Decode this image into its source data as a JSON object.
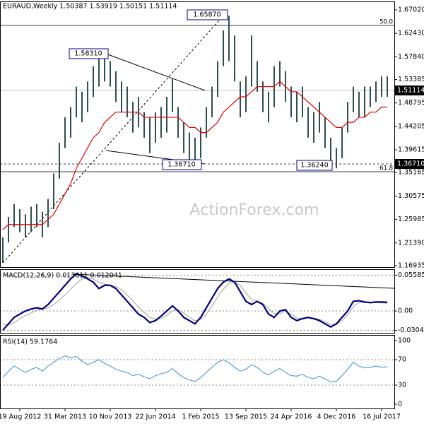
{
  "chart_data": [
    {
      "type": "ohlc",
      "title": "EURAUD,Weekly  1.50387 1.53919 1.50151 1.51114",
      "categories": [
        null,
        null,
        null,
        "19 Aug 2012",
        null,
        null,
        null,
        null,
        null,
        null,
        null,
        "31 Mar 2013",
        null,
        null,
        null,
        null,
        null,
        null,
        null,
        "10 Nov 2013",
        null,
        null,
        null,
        null,
        null,
        null,
        null,
        "22 Jun 2014",
        null,
        null,
        null,
        null,
        null,
        null,
        null,
        "1 Feb 2015",
        null,
        null,
        null,
        null,
        null,
        null,
        null,
        "13 Sep 2015",
        null,
        null,
        null,
        null,
        null,
        null,
        null,
        "24 Apr 2016",
        null,
        null,
        null,
        null,
        null,
        null,
        null,
        "4 Dec 2016",
        null,
        null,
        null,
        null,
        null,
        null,
        null,
        "16 Jul 2017",
        null
      ],
      "high": [
        1.225,
        1.265,
        1.29,
        1.28,
        1.27,
        1.285,
        1.29,
        1.275,
        1.3,
        1.35,
        1.41,
        1.46,
        1.48,
        1.52,
        1.51,
        1.53,
        1.56,
        1.585,
        1.58,
        1.57,
        1.55,
        1.53,
        1.52,
        1.49,
        1.5,
        1.47,
        1.46,
        1.47,
        1.48,
        1.5,
        1.535,
        1.48,
        1.45,
        1.43,
        1.42,
        1.44,
        1.48,
        1.52,
        1.57,
        1.63,
        1.6587,
        1.62,
        1.53,
        1.54,
        1.62,
        1.57,
        1.53,
        1.51,
        1.56,
        1.57,
        1.55,
        1.52,
        1.51,
        1.52,
        1.48,
        1.47,
        1.49,
        1.46,
        1.42,
        1.4,
        1.44,
        1.49,
        1.52,
        1.51,
        1.52,
        1.52,
        1.53,
        1.54,
        1.54
      ],
      "low": [
        1.175,
        1.215,
        1.245,
        1.235,
        1.225,
        1.235,
        1.245,
        1.225,
        1.245,
        1.28,
        1.34,
        1.4,
        1.42,
        1.46,
        1.45,
        1.47,
        1.5,
        1.52,
        1.53,
        1.52,
        1.49,
        1.47,
        1.46,
        1.43,
        1.44,
        1.42,
        1.39,
        1.41,
        1.42,
        1.43,
        1.47,
        1.42,
        1.39,
        1.3671,
        1.37,
        1.38,
        1.42,
        1.46,
        1.5,
        1.56,
        1.57,
        1.53,
        1.46,
        1.47,
        1.52,
        1.51,
        1.47,
        1.45,
        1.48,
        1.52,
        1.49,
        1.46,
        1.45,
        1.46,
        1.42,
        1.41,
        1.43,
        1.4,
        1.3624,
        1.36,
        1.38,
        1.43,
        1.47,
        1.46,
        1.46,
        1.48,
        1.49,
        1.5,
        1.5
      ],
      "color": "#2f4f4f",
      "ma_color": "#e00000",
      "ma_values": [
        1.24,
        1.25,
        1.25,
        1.25,
        1.25,
        1.25,
        1.25,
        1.25,
        1.26,
        1.27,
        1.29,
        1.31,
        1.33,
        1.36,
        1.38,
        1.4,
        1.42,
        1.43,
        1.45,
        1.46,
        1.47,
        1.47,
        1.47,
        1.47,
        1.47,
        1.46,
        1.46,
        1.46,
        1.46,
        1.46,
        1.46,
        1.46,
        1.45,
        1.44,
        1.44,
        1.43,
        1.43,
        1.44,
        1.45,
        1.47,
        1.48,
        1.49,
        1.5,
        1.5,
        1.51,
        1.52,
        1.52,
        1.52,
        1.52,
        1.53,
        1.52,
        1.51,
        1.51,
        1.5,
        1.49,
        1.48,
        1.47,
        1.46,
        1.45,
        1.44,
        1.44,
        1.45,
        1.45,
        1.46,
        1.46,
        1.47,
        1.47,
        1.48,
        1.48
      ],
      "ylim": [
        1.1666,
        1.6868
      ],
      "yticks": [
        {
          "value": 1.6702,
          "label": "1.67020"
        },
        {
          "value": 1.6243,
          "label": "1.62430"
        },
        {
          "value": 1.5784,
          "label": "1.57840"
        },
        1.53385,
        1.48795,
        1.44205,
        1.39615,
        1.35165,
        1.30575,
        1.25985,
        {
          "value": 1.2139,
          "label": "1.21390"
        },
        1.16935
      ],
      "annotations": [
        "1.65870",
        "1.58310",
        "1.36710",
        "1.36240",
        "50.0",
        "61.8"
      ],
      "last_price_label": "1.51114",
      "level_label": "1.36710",
      "watermark": "ActionForex.com"
    },
    {
      "type": "line",
      "title": "MACD(12,26,9) 0.013611 0.012041",
      "series": [
        {
          "color": "#000080",
          "values": [
            -0.03,
            -0.02,
            -0.01,
            -0.005,
            0,
            0.003,
            0.005,
            0.003,
            0.01,
            0.02,
            0.03,
            0.04,
            0.05,
            0.058,
            0.055,
            0.05,
            0.045,
            0.035,
            0.04,
            0.04,
            0.035,
            0.025,
            0.015,
            0.005,
            -0.005,
            -0.01,
            -0.018,
            -0.015,
            -0.008,
            0,
            0.008,
            0,
            -0.01,
            -0.015,
            -0.02,
            -0.01,
            0.005,
            0.02,
            0.035,
            0.045,
            0.05,
            0.045,
            0.03,
            0.015,
            0.01,
            0.015,
            0.01,
            -0.005,
            -0.01,
            0,
            0.002,
            -0.01,
            -0.015,
            -0.012,
            -0.01,
            -0.012,
            -0.015,
            -0.02,
            -0.025,
            -0.02,
            -0.01,
            0,
            0.015,
            0.016,
            0.014,
            0.013,
            0.014,
            0.014,
            0.013611
          ]
        },
        {
          "color": "#a0a0a0",
          "values": [
            -0.02,
            -0.022,
            -0.018,
            -0.012,
            -0.007,
            -0.003,
            0.001,
            0.003,
            0.005,
            0.01,
            0.017,
            0.025,
            0.034,
            0.043,
            0.05,
            0.052,
            0.05,
            0.045,
            0.042,
            0.04,
            0.038,
            0.033,
            0.025,
            0.016,
            0.006,
            -0.002,
            -0.01,
            -0.013,
            -0.012,
            -0.007,
            0,
            0.002,
            -0.003,
            -0.01,
            -0.015,
            -0.013,
            -0.005,
            0.008,
            0.022,
            0.034,
            0.043,
            0.046,
            0.04,
            0.028,
            0.018,
            0.015,
            0.012,
            0.004,
            -0.004,
            -0.004,
            0,
            -0.005,
            -0.011,
            -0.012,
            -0.011,
            -0.011,
            -0.013,
            -0.017,
            -0.021,
            -0.021,
            -0.015,
            -0.006,
            0.007,
            0.013,
            0.014,
            0.0135,
            0.013,
            0.0125,
            0.012041
          ]
        }
      ],
      "ylim": [
        -0.033,
        0.064
      ],
      "yticks": [
        0.055858,
        {
          "value": 0,
          "label": "0.00"
        },
        -0.030447
      ]
    },
    {
      "type": "line",
      "title": "RSI(14) 59.1764",
      "series": [
        {
          "color": "#3c8fd0",
          "values": [
            42,
            52,
            60,
            55,
            50,
            55,
            58,
            52,
            60,
            66,
            72,
            76,
            73,
            75,
            68,
            62,
            66,
            70,
            64,
            60,
            55,
            52,
            50,
            45,
            47,
            43,
            40,
            45,
            48,
            50,
            56,
            48,
            42,
            38,
            36,
            42,
            50,
            58,
            66,
            70,
            65,
            58,
            52,
            55,
            62,
            58,
            50,
            46,
            52,
            56,
            50,
            45,
            44,
            47,
            42,
            40,
            44,
            40,
            35,
            36,
            45,
            55,
            66,
            60,
            57,
            58,
            60,
            58,
            59.1764
          ]
        }
      ],
      "ylim": [
        0,
        100
      ],
      "yticks": [
        100,
        70,
        30,
        0
      ]
    }
  ]
}
